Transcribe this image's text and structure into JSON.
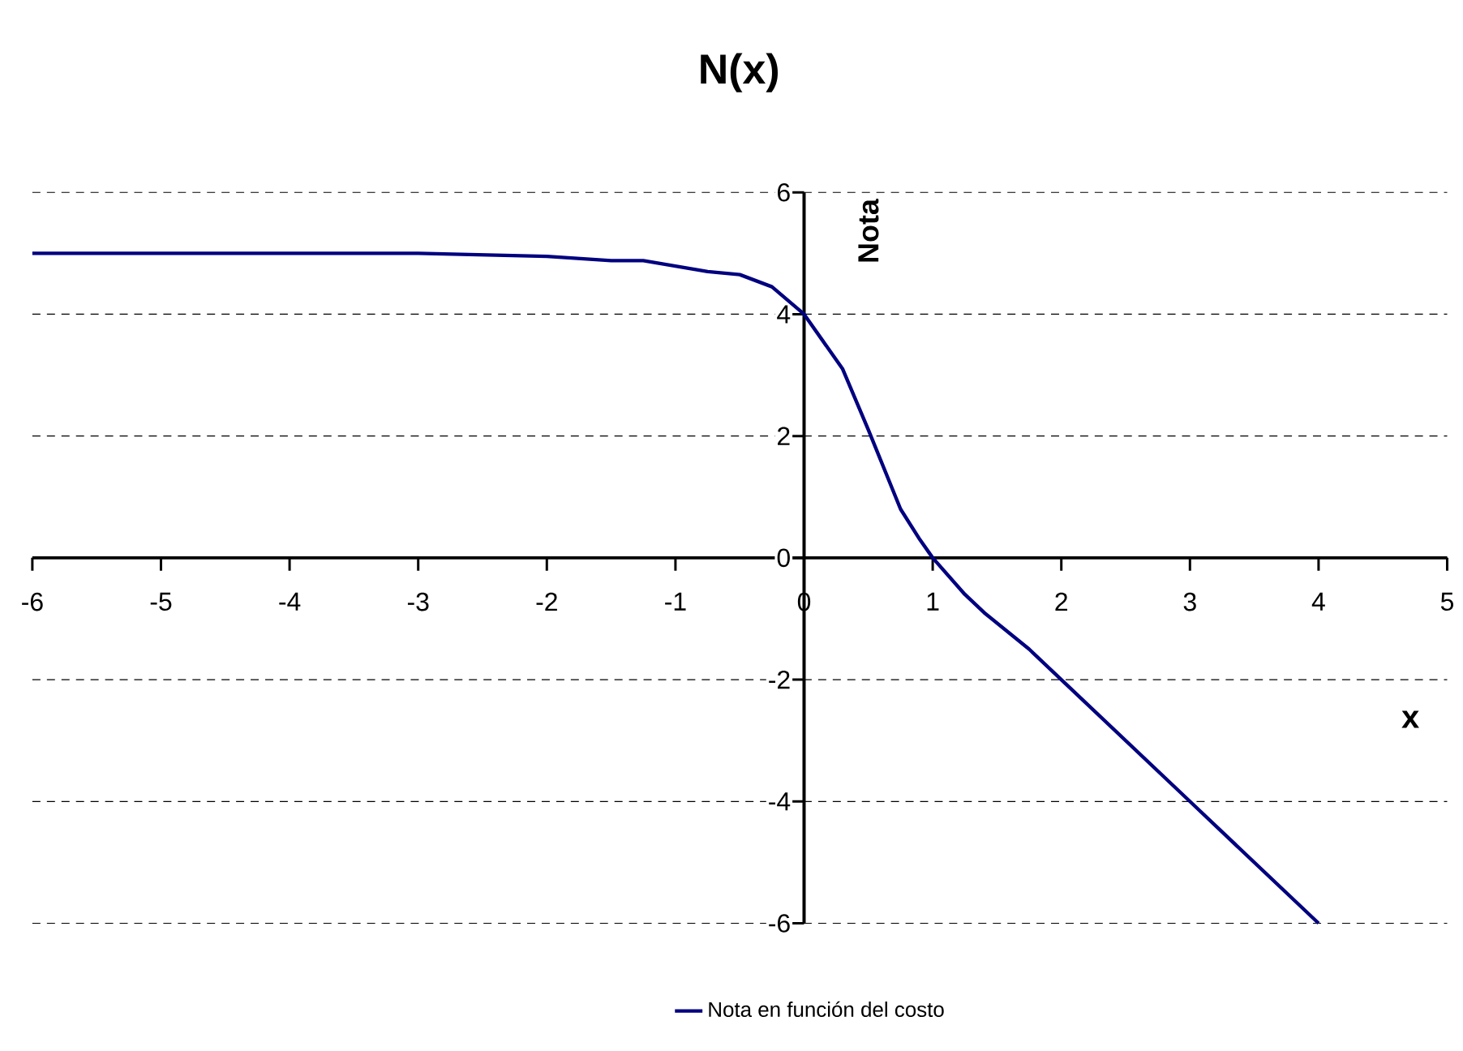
{
  "chart_data": {
    "type": "line",
    "title": "N(x)",
    "xlabel": "x",
    "ylabel": "Nota",
    "xlim": [
      -6,
      5
    ],
    "ylim": [
      -6,
      6
    ],
    "xticks": [
      -6,
      -5,
      -4,
      -3,
      -2,
      -1,
      0,
      1,
      2,
      3,
      4,
      5
    ],
    "yticks": [
      -6,
      -4,
      -2,
      0,
      2,
      4,
      6
    ],
    "grid": "y",
    "legend": "bottom",
    "marker": "none",
    "line_style": "solid",
    "series": [
      {
        "name": "Nota en función del costo",
        "color": "#000080",
        "x": [
          -6,
          -3,
          -2,
          -1.5,
          -1.25,
          -0.75,
          -0.5,
          -0.25,
          0,
          0.3,
          0.5,
          0.75,
          0.9,
          1,
          1.25,
          1.4,
          1.75,
          2,
          3,
          4
        ],
        "values": [
          5,
          5,
          4.95,
          4.88,
          4.88,
          4.7,
          4.65,
          4.45,
          4,
          3.1,
          2.1,
          0.8,
          0.3,
          0,
          -0.6,
          -0.9,
          -1.5,
          -2,
          -4,
          -6
        ]
      }
    ]
  }
}
